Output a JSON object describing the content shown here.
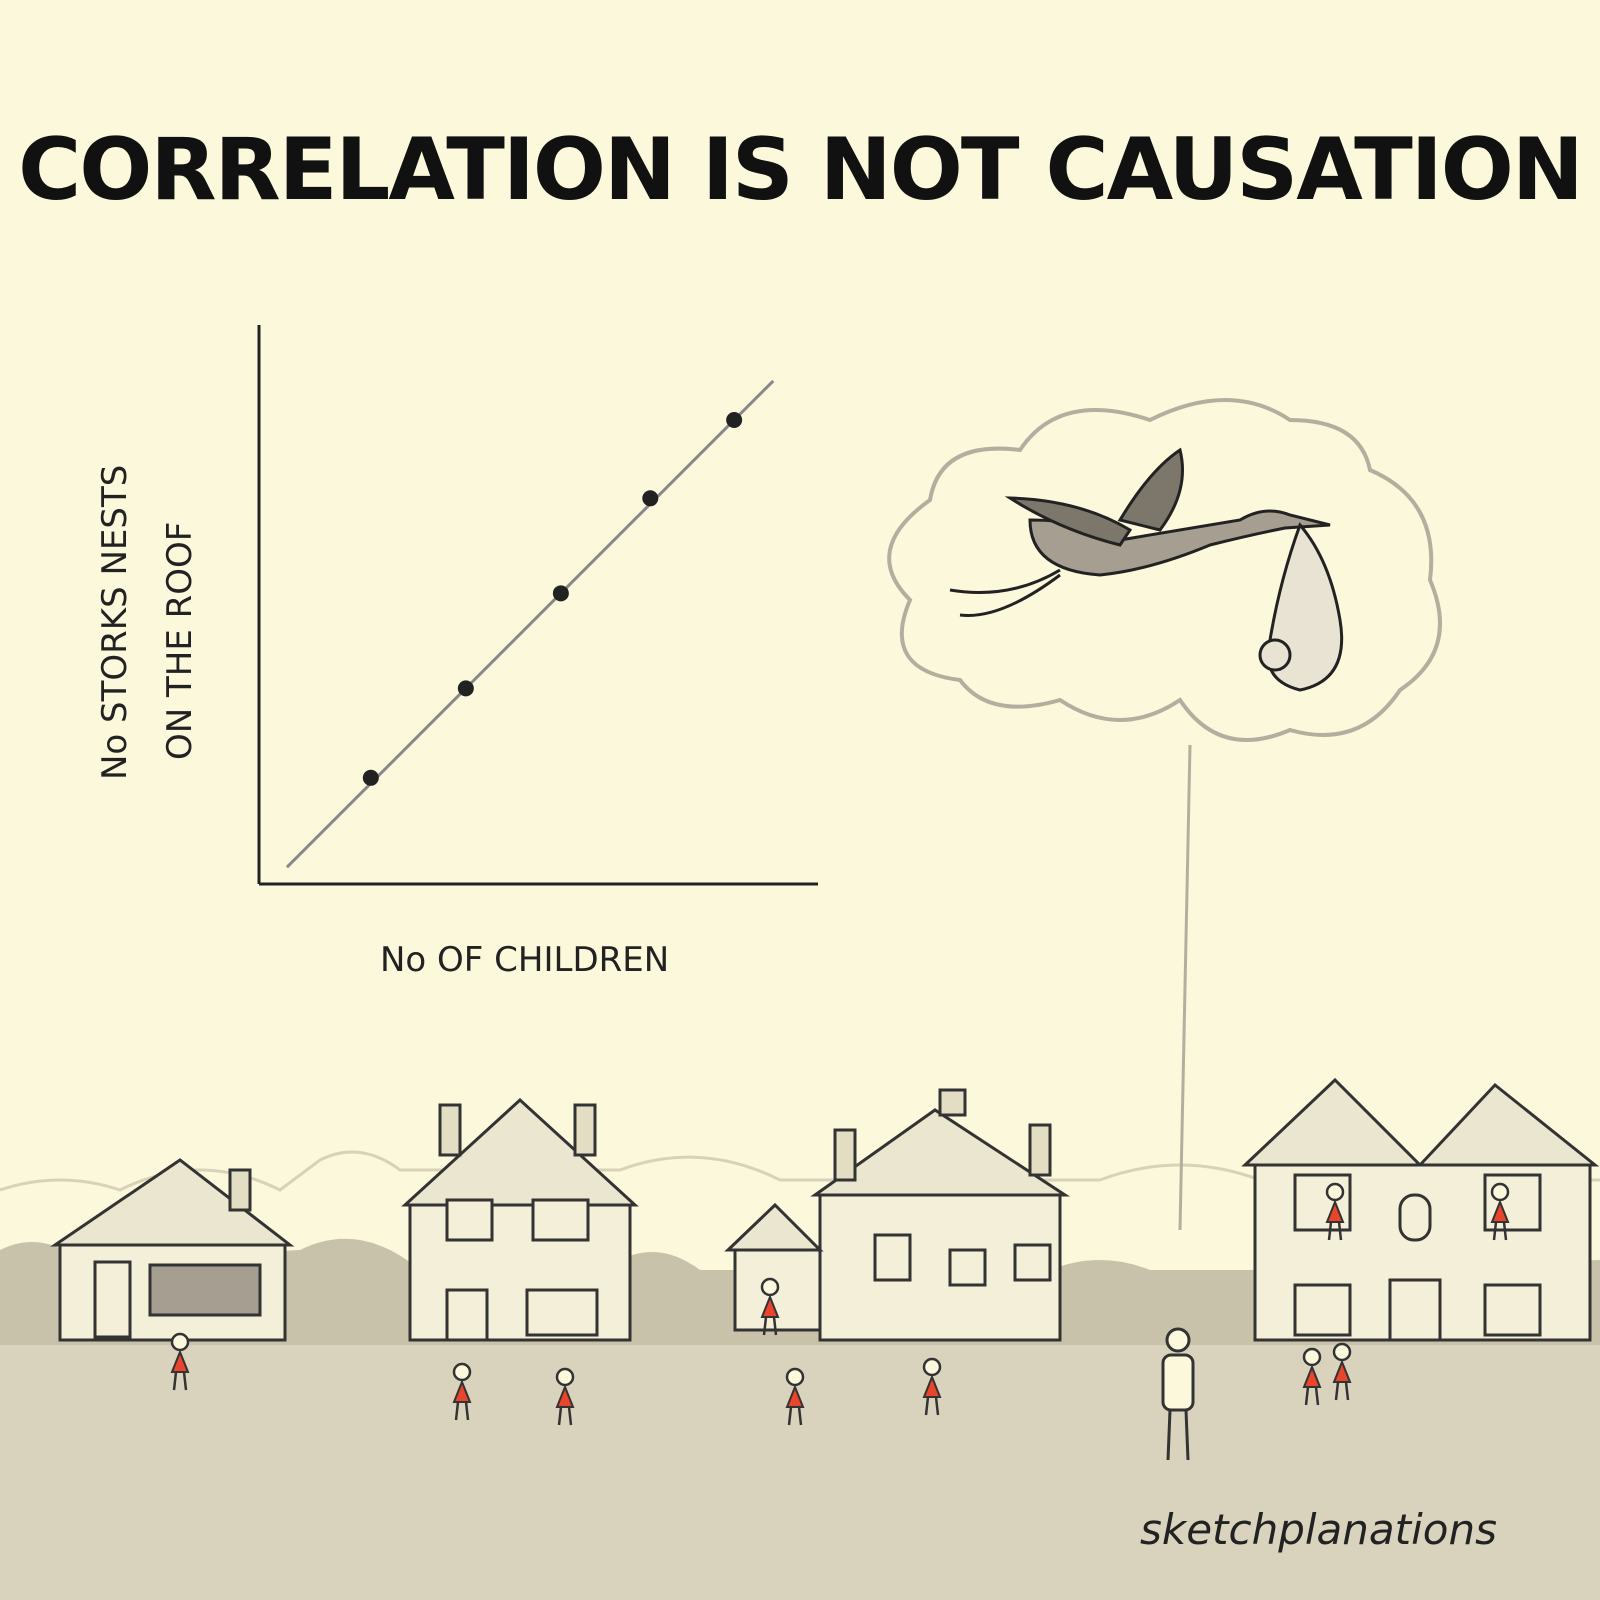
{
  "title": "CORRELATION IS NOT CAUSATION",
  "signature": "sketchplanations",
  "colors": {
    "background": "#fbf8dc",
    "ground": "#d9d3bd",
    "children": "#e8452c",
    "line": "#888888",
    "points": "#222222"
  },
  "chart_data": {
    "type": "scatter",
    "title": "",
    "xlabel": "No OF CHILDREN",
    "ylabel_lines": [
      "No STORKS NESTS",
      "ON THE ROOF"
    ],
    "xlim": [
      0,
      10
    ],
    "ylim": [
      0,
      10
    ],
    "ticks": false,
    "grid": false,
    "points": [
      {
        "x": 2.0,
        "y": 1.9
      },
      {
        "x": 3.7,
        "y": 3.5
      },
      {
        "x": 5.4,
        "y": 5.2
      },
      {
        "x": 7.0,
        "y": 6.9
      },
      {
        "x": 8.5,
        "y": 8.3
      }
    ],
    "trend_line": {
      "from": {
        "x": 0.5,
        "y": 0.3
      },
      "to": {
        "x": 9.2,
        "y": 9.0
      }
    }
  },
  "illustration": {
    "thought_bubble": "stork carrying baby",
    "scene": "houses with storks' nests on the roofs and children playing"
  }
}
